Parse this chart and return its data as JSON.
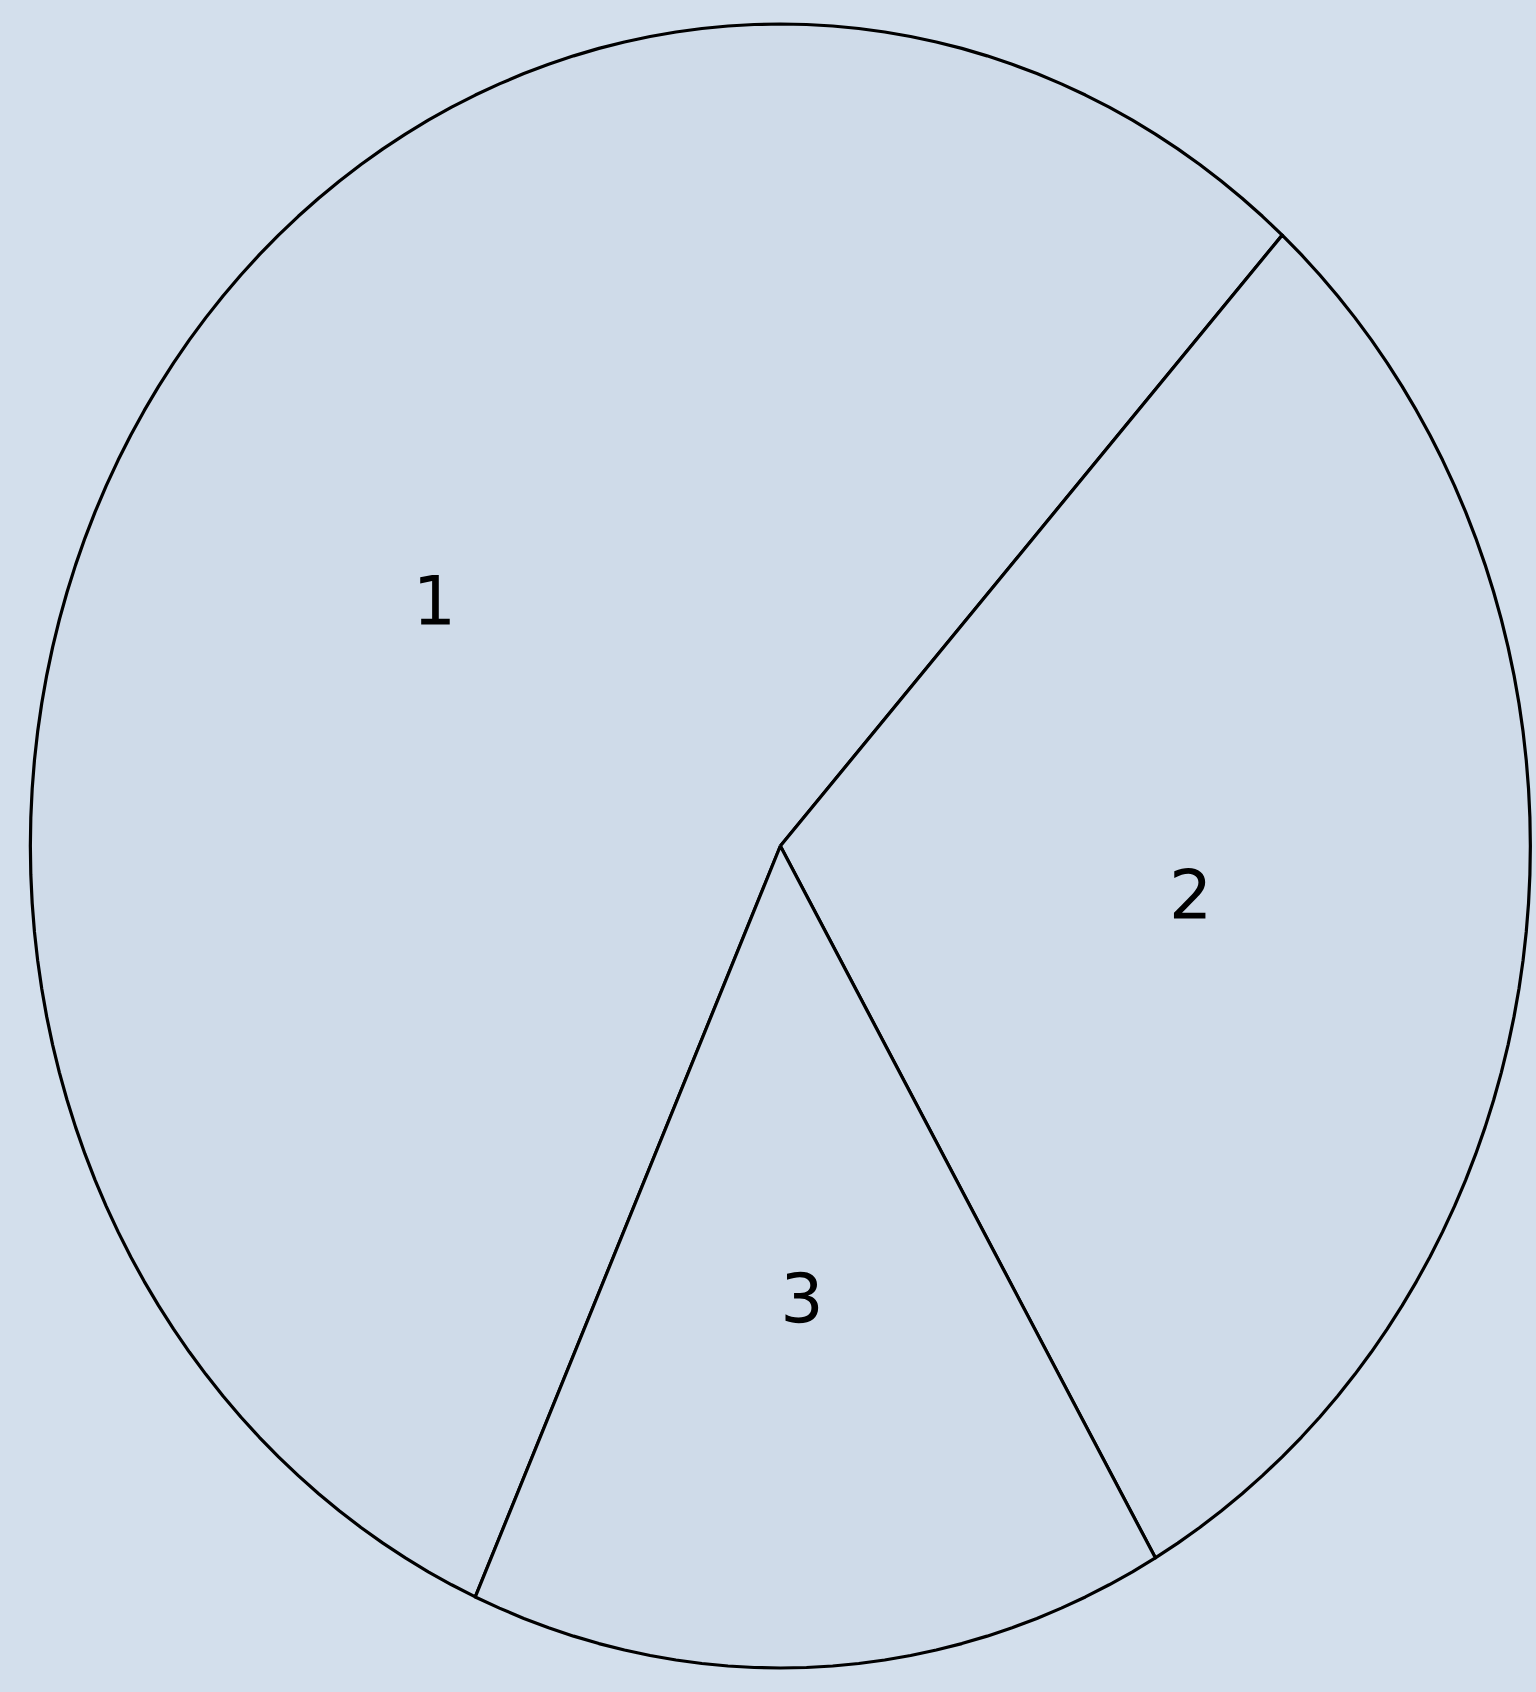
{
  "chart_data": {
    "type": "pie",
    "categories": [
      "1",
      "2",
      "3"
    ],
    "values": [
      55,
      30,
      15
    ],
    "colors": [
      "#cfdbe9",
      "#cfdbe9",
      "#cfdbe9"
    ]
  }
}
